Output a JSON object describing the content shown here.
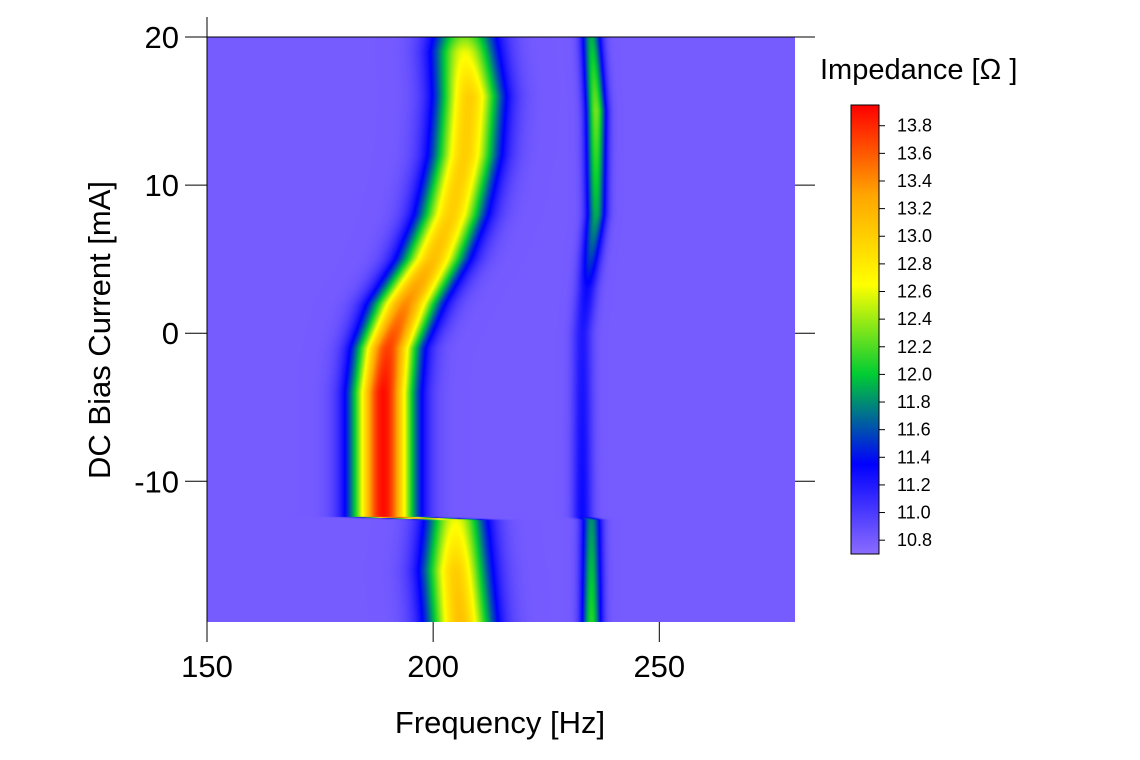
{
  "chart_data": {
    "type": "heatmap",
    "title": "",
    "xlabel": "Frequency [Hz]",
    "ylabel": "DC Bias Current [mA]",
    "colorbar_label": "Impedance [Ω ]",
    "xlim": [
      150,
      280
    ],
    "ylim": [
      -19.5,
      20
    ],
    "x_ticks": [
      150,
      200,
      250
    ],
    "y_ticks": [
      20,
      10,
      0,
      -10
    ],
    "colorbar_range": [
      10.7,
      13.95
    ],
    "colorbar_ticks": [
      "13.8",
      "13.6",
      "13.4",
      "13.2",
      "13.0",
      "12.8",
      "12.6",
      "12.4",
      "12.2",
      "12.0",
      "11.8",
      "11.6",
      "11.4",
      "11.2",
      "11.0",
      "10.8"
    ],
    "colormap": [
      "#8b6cff",
      "#0000ff",
      "#00cc33",
      "#ffff00",
      "#ffa500",
      "#ff0000"
    ],
    "background_value": 10.8,
    "grid": false,
    "legend": "colorbar-right",
    "bands": [
      {
        "name": "primary-resonance",
        "ridge": [
          {
            "y": 20,
            "f": 207,
            "peak": 12.3,
            "width": 7
          },
          {
            "y": 19,
            "f": 207,
            "peak": 12.6,
            "width": 7
          },
          {
            "y": 16,
            "f": 208,
            "peak": 13.0,
            "width": 7
          },
          {
            "y": 12,
            "f": 207,
            "peak": 13.0,
            "width": 7
          },
          {
            "y": 8,
            "f": 204,
            "peak": 13.0,
            "width": 7
          },
          {
            "y": 5,
            "f": 200,
            "peak": 13.1,
            "width": 7
          },
          {
            "y": 2,
            "f": 194,
            "peak": 13.4,
            "width": 7
          },
          {
            "y": -1,
            "f": 190,
            "peak": 13.7,
            "width": 6.5
          },
          {
            "y": -4,
            "f": 189,
            "peak": 13.9,
            "width": 6.5
          },
          {
            "y": -12.4,
            "f": 189,
            "peak": 13.9,
            "width": 6.5
          },
          {
            "y": -12.6,
            "f": 205,
            "peak": 12.6,
            "width": 6.5
          },
          {
            "y": -16,
            "f": 205,
            "peak": 13.0,
            "width": 7
          },
          {
            "y": -19.5,
            "f": 206,
            "peak": 13.1,
            "width": 7
          }
        ]
      },
      {
        "name": "secondary-resonance",
        "ridge": [
          {
            "y": 20,
            "f": 235,
            "peak": 11.9,
            "width": 2.2
          },
          {
            "y": 15,
            "f": 236,
            "peak": 12.3,
            "width": 2.2
          },
          {
            "y": 8,
            "f": 236,
            "peak": 11.9,
            "width": 2.2
          },
          {
            "y": 3,
            "f": 234,
            "peak": 11.3,
            "width": 2.2
          },
          {
            "y": 0,
            "f": 233,
            "peak": 11.2,
            "width": 2.2
          },
          {
            "y": -12.4,
            "f": 233,
            "peak": 11.3,
            "width": 2.2
          },
          {
            "y": -12.6,
            "f": 235,
            "peak": 11.8,
            "width": 2.2
          },
          {
            "y": -19.5,
            "f": 235,
            "peak": 12.1,
            "width": 2.2
          }
        ]
      }
    ]
  }
}
